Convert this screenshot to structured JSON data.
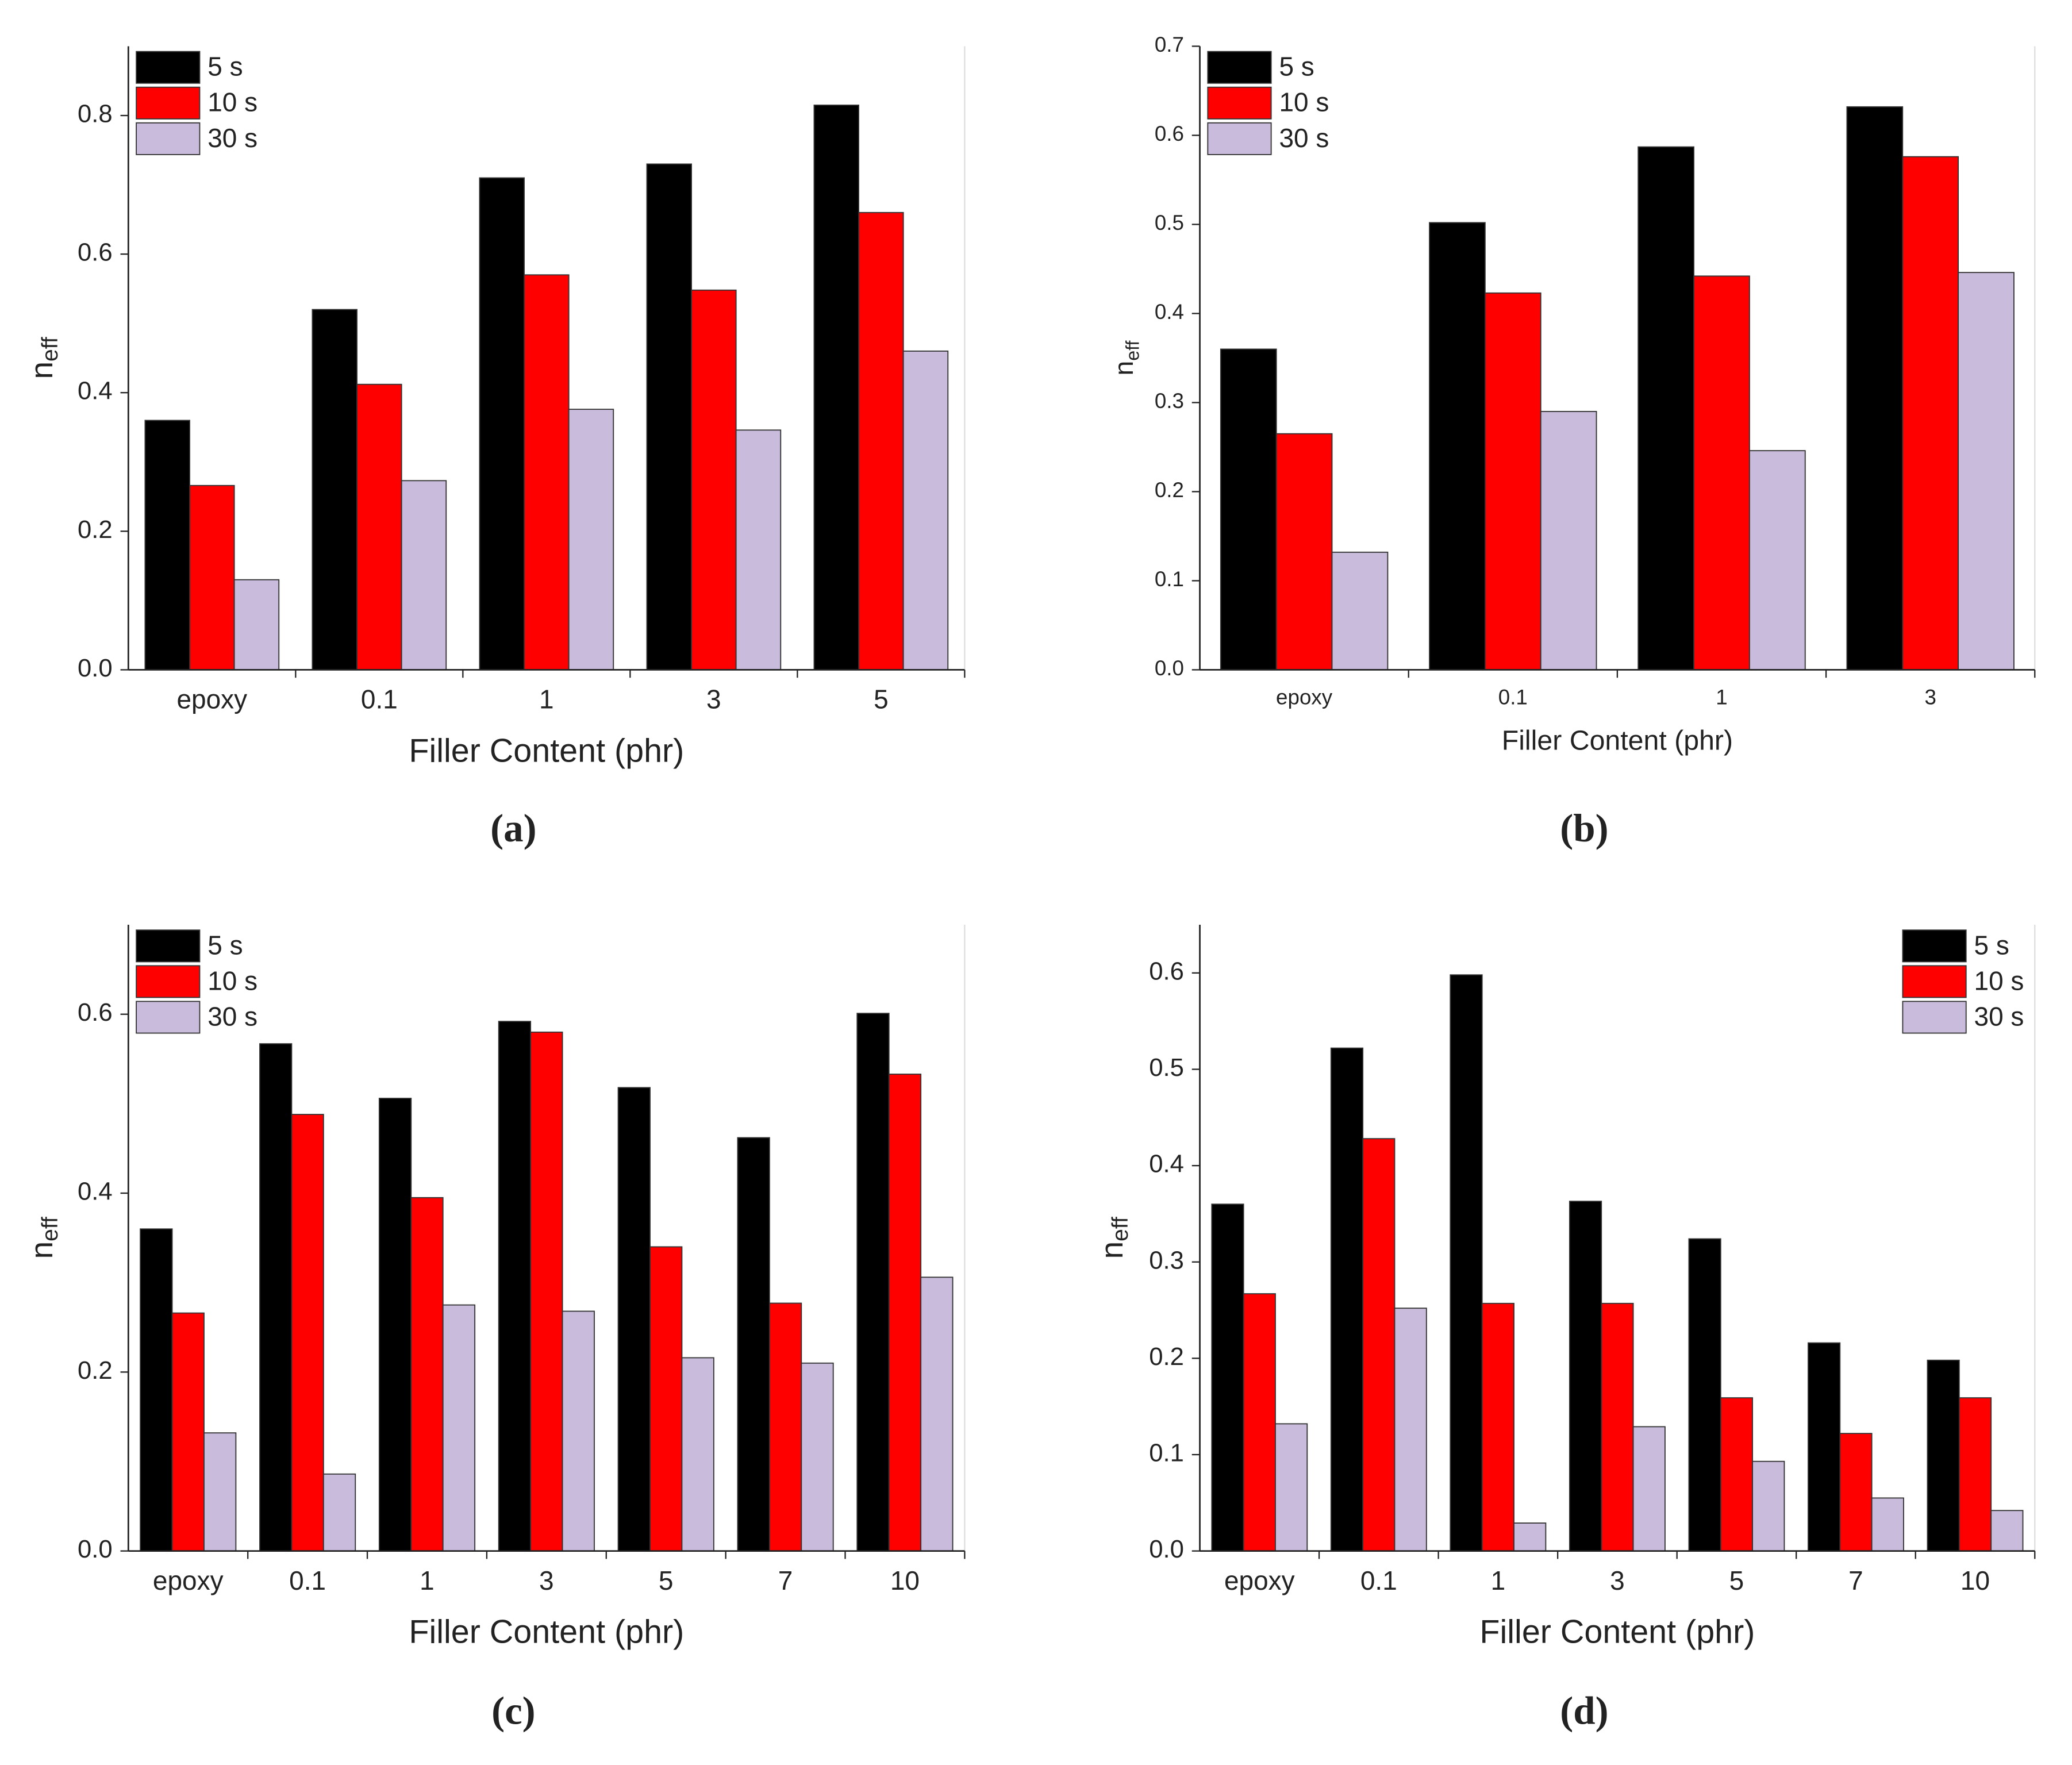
{
  "chart_data": [
    {
      "type": "bar",
      "caption": "(a)",
      "xlabel": "Filler Content (phr)",
      "ylabel": "n",
      "ylabel_sub": "eff",
      "categories": [
        "epoxy",
        "0.1",
        "1",
        "3",
        "5"
      ],
      "series": [
        {
          "name": "5 s",
          "color": "#000000",
          "values": [
            0.36,
            0.52,
            0.71,
            0.73,
            0.815
          ]
        },
        {
          "name": "10 s",
          "color": "#ff0000",
          "values": [
            0.266,
            0.412,
            0.57,
            0.548,
            0.66
          ]
        },
        {
          "name": "30 s",
          "color": "#c9bbdb",
          "values": [
            0.13,
            0.273,
            0.376,
            0.346,
            0.46
          ]
        }
      ],
      "ylim": [
        0,
        0.9
      ],
      "yticks": [
        {
          "value": 0,
          "label": "0.0"
        },
        0.2,
        0.4,
        0.6,
        0.8
      ],
      "legend": "upper left"
    },
    {
      "type": "bar",
      "caption": "(b)",
      "xlabel": "Filler Content (phr)",
      "ylabel": "n",
      "ylabel_sub": "eff",
      "categories": [
        "epoxy",
        "0.1",
        "1",
        "3"
      ],
      "series": [
        {
          "name": "5 s",
          "color": "#000000",
          "values": [
            0.36,
            0.502,
            0.587,
            0.632
          ]
        },
        {
          "name": "10 s",
          "color": "#ff0000",
          "values": [
            0.265,
            0.423,
            0.442,
            0.576
          ]
        },
        {
          "name": "30 s",
          "color": "#c9bbdb",
          "values": [
            0.132,
            0.29,
            0.246,
            0.446
          ]
        }
      ],
      "ylim": [
        0,
        0.7
      ],
      "yticks": [
        {
          "value": 0,
          "label": "0.0"
        },
        0.1,
        0.2,
        0.3,
        0.4,
        0.5,
        0.6,
        0.7
      ],
      "legend": "upper left"
    },
    {
      "type": "bar",
      "caption": "(c)",
      "xlabel": "Filler Content (phr)",
      "ylabel": "n",
      "ylabel_sub": "eff",
      "categories": [
        "epoxy",
        "0.1",
        "1",
        "3",
        "5",
        "7",
        "10"
      ],
      "series": [
        {
          "name": "5 s",
          "color": "#000000",
          "values": [
            0.36,
            0.567,
            0.506,
            0.592,
            0.518,
            0.462,
            0.601
          ]
        },
        {
          "name": "10 s",
          "color": "#ff0000",
          "values": [
            0.266,
            0.488,
            0.395,
            0.58,
            0.34,
            0.277,
            0.533
          ]
        },
        {
          "name": "30 s",
          "color": "#c9bbdb",
          "values": [
            0.132,
            0.086,
            0.275,
            0.268,
            0.216,
            0.21,
            0.306
          ]
        }
      ],
      "ylim": [
        0,
        0.7
      ],
      "yticks": [
        {
          "value": 0,
          "label": "0.0"
        },
        0.2,
        0.4,
        0.6
      ],
      "legend": "upper left"
    },
    {
      "type": "bar",
      "caption": "(d)",
      "xlabel": "Filler Content (phr)",
      "ylabel": "n",
      "ylabel_sub": "eff",
      "categories": [
        "epoxy",
        "0.1",
        "1",
        "3",
        "5",
        "7",
        "10"
      ],
      "series": [
        {
          "name": "5 s",
          "color": "#000000",
          "values": [
            0.36,
            0.522,
            0.598,
            0.363,
            0.324,
            0.216,
            0.198
          ]
        },
        {
          "name": "10 s",
          "color": "#ff0000",
          "values": [
            0.267,
            0.428,
            0.257,
            0.257,
            0.159,
            0.122,
            0.159
          ]
        },
        {
          "name": "30 s",
          "color": "#c9bbdb",
          "values": [
            0.132,
            0.252,
            0.029,
            0.129,
            0.093,
            0.055,
            0.042
          ]
        }
      ],
      "ylim": [
        0,
        0.65
      ],
      "yticks": [
        {
          "value": 0,
          "label": "0.0"
        },
        0.1,
        0.2,
        0.3,
        0.4,
        0.5,
        0.6
      ],
      "legend": "upper right"
    }
  ]
}
